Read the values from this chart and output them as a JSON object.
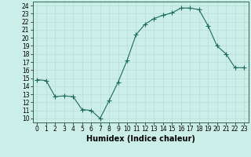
{
  "x": [
    0,
    1,
    2,
    3,
    4,
    5,
    6,
    7,
    8,
    9,
    10,
    11,
    12,
    13,
    14,
    15,
    16,
    17,
    18,
    19,
    20,
    21,
    22,
    23
  ],
  "y": [
    14.8,
    14.7,
    12.7,
    12.8,
    12.7,
    11.1,
    11.0,
    10.0,
    12.2,
    14.5,
    17.2,
    20.4,
    21.7,
    22.4,
    22.8,
    23.1,
    23.7,
    23.7,
    23.5,
    21.5,
    19.0,
    18.0,
    16.3,
    16.3
  ],
  "line_color": "#1a6b5a",
  "bg_color": "#cceee8",
  "grid_color": "#b8ddd6",
  "xlabel": "Humidex (Indice chaleur)",
  "ylim": [
    9.5,
    24.5
  ],
  "xlim": [
    -0.5,
    23.5
  ],
  "yticks": [
    10,
    11,
    12,
    13,
    14,
    15,
    16,
    17,
    18,
    19,
    20,
    21,
    22,
    23,
    24
  ],
  "xticks": [
    0,
    1,
    2,
    3,
    4,
    5,
    6,
    7,
    8,
    9,
    10,
    11,
    12,
    13,
    14,
    15,
    16,
    17,
    18,
    19,
    20,
    21,
    22,
    23
  ],
  "tick_fontsize": 5.5,
  "xlabel_fontsize": 7,
  "marker_size": 2.0,
  "linewidth": 0.8
}
